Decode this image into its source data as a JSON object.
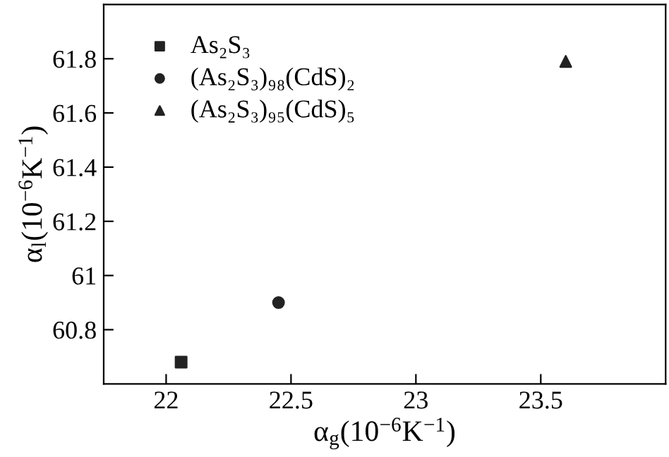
{
  "chart_data": {
    "type": "scatter",
    "xlabel": "α$_{g}$(10$^{−6}$K$^{−1}$)",
    "ylabel": "α$_{l}$(10$^{−6}$K$^{−1}$)",
    "series": [
      {
        "name": "As₂S₃",
        "color": "#222222",
        "marker": "square",
        "x": [
          22.06
        ],
        "values": [
          60.68
        ]
      },
      {
        "name": "(As₂S₃)₉₈(CdS)₂",
        "color": "#222222",
        "marker": "circle",
        "x": [
          22.45
        ],
        "values": [
          60.9
        ]
      },
      {
        "name": "(As₂S₃)₉₅(CdS)₅",
        "color": "#222222",
        "marker": "triangle",
        "x": [
          23.6
        ],
        "values": [
          61.79
        ]
      }
    ],
    "xlim": [
      21.75,
      24.0
    ],
    "ylim": [
      60.6,
      62.0
    ],
    "xticks": [
      22,
      22.5,
      23,
      23.5
    ],
    "yticks": [
      60.8,
      61,
      61.2,
      61.4,
      61.6,
      61.8
    ],
    "grid": false,
    "legend": "top left"
  }
}
